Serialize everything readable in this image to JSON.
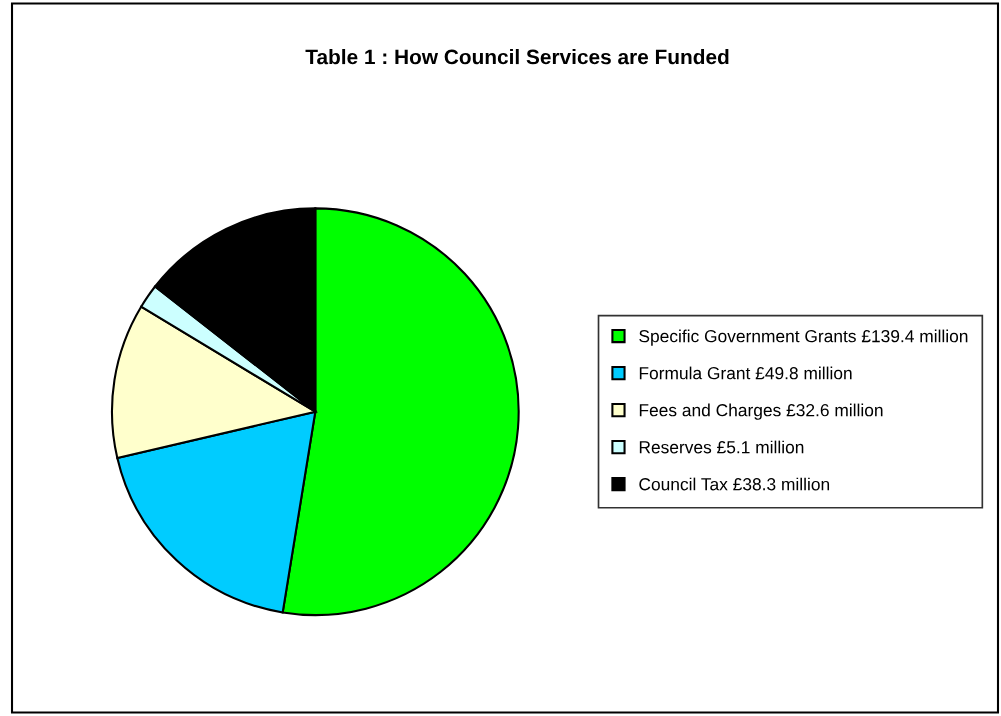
{
  "chart_data": {
    "type": "pie",
    "title": "Table 1 : How Council Services are Funded",
    "categories": [
      "Specific Government Grants",
      "Formula Grant",
      "Fees and Charges",
      "Reserves",
      "Council Tax"
    ],
    "values": [
      139.4,
      49.8,
      32.6,
      5.1,
      38.3
    ],
    "value_labels": [
      "£139.4 million",
      "£49.8 million",
      "£32.6 million",
      "£5.1 million",
      "£38.3 million"
    ],
    "colors": [
      "#00ff00",
      "#00ccff",
      "#ffffcc",
      "#ccffff",
      "#000000"
    ],
    "legend": "right"
  }
}
